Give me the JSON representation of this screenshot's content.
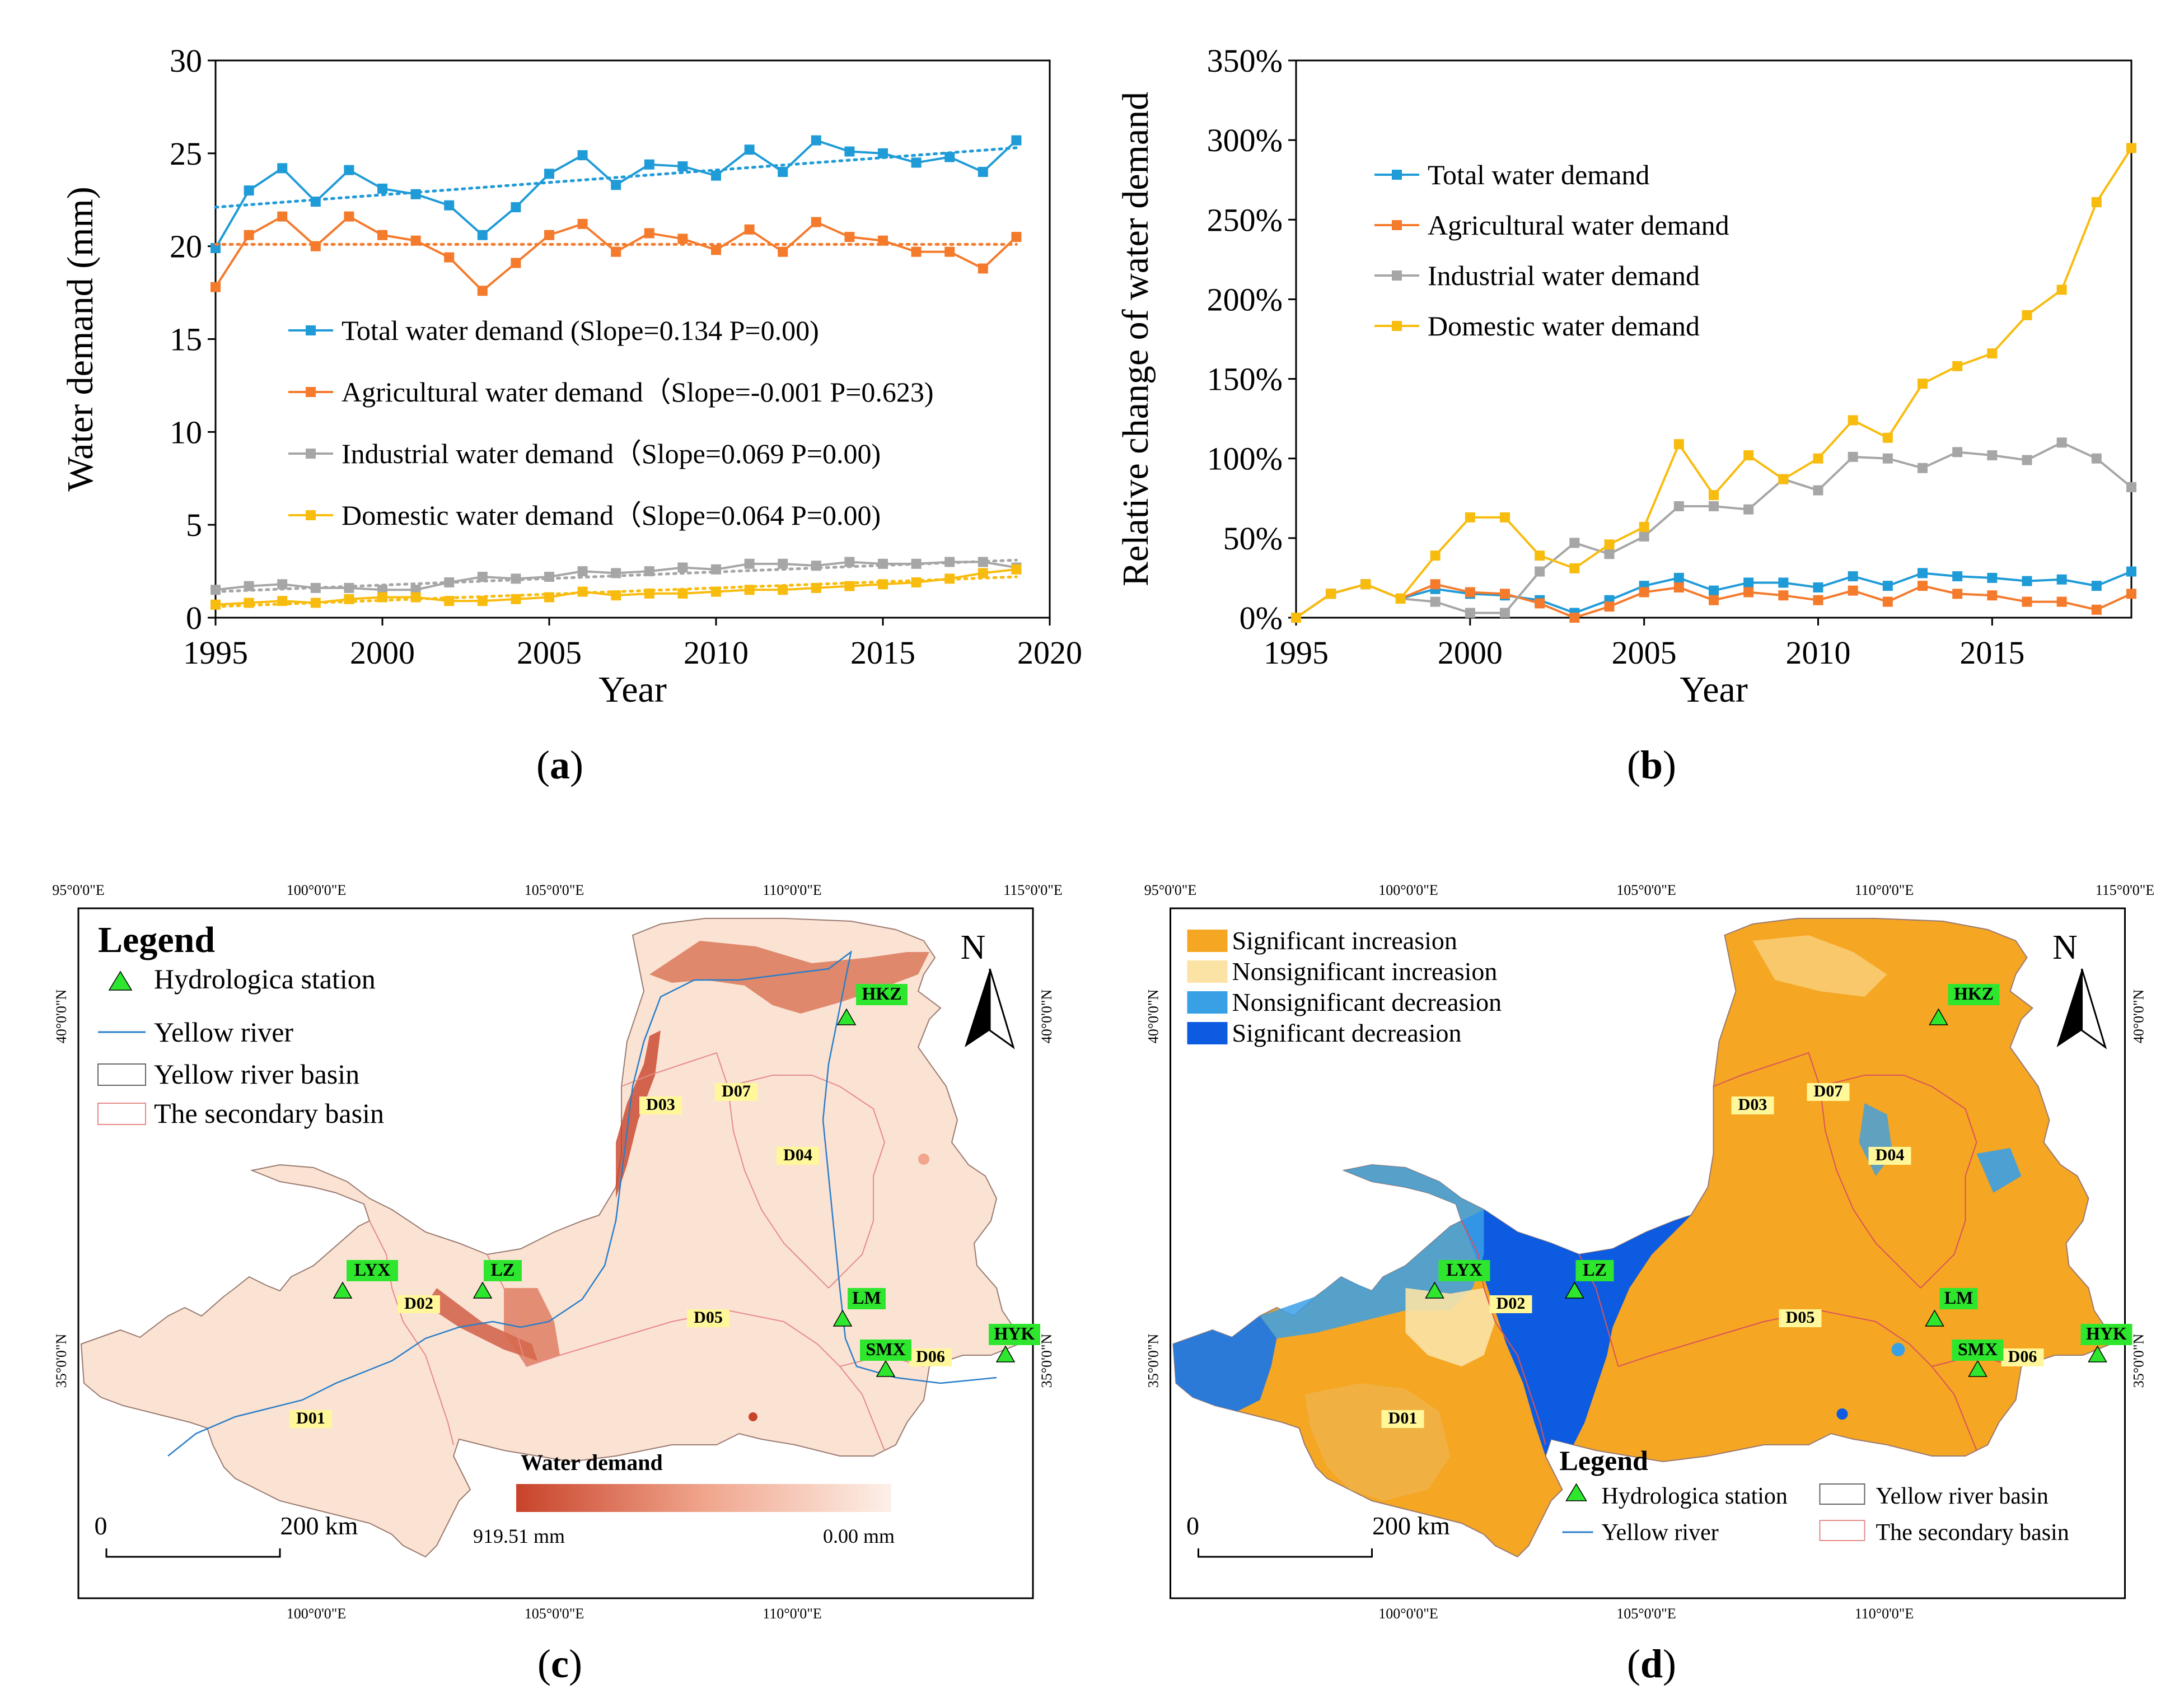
{
  "panels": {
    "a": "a",
    "b": "b",
    "c": "c",
    "d": "d"
  },
  "colors": {
    "total": "#1f9bd7",
    "agricultural": "#f47a2c",
    "industrial": "#a6a6a6",
    "domestic": "#f8bc0e"
  },
  "chart_data": [
    {
      "id": "a",
      "type": "line",
      "xlabel": "Year",
      "ylabel": "Water demand (mm)",
      "xlim": [
        1995,
        2020
      ],
      "ylim": [
        0,
        30
      ],
      "xticks": [
        1995,
        2000,
        2005,
        2010,
        2015,
        2020
      ],
      "yticks": [
        0,
        5,
        10,
        15,
        20,
        25,
        30
      ],
      "x": [
        1995,
        1996,
        1997,
        1998,
        1999,
        2000,
        2001,
        2002,
        2003,
        2004,
        2005,
        2006,
        2007,
        2008,
        2009,
        2010,
        2011,
        2012,
        2013,
        2014,
        2015,
        2016,
        2017,
        2018,
        2019
      ],
      "series": [
        {
          "key": "total",
          "name": "Total water demand (Slope=0.134 P=0.00)",
          "values": [
            19.9,
            23.0,
            24.2,
            22.4,
            24.1,
            23.1,
            22.8,
            22.2,
            20.6,
            22.1,
            23.9,
            24.9,
            23.3,
            24.4,
            24.3,
            23.8,
            25.2,
            24.0,
            25.7,
            25.1,
            25.0,
            24.5,
            24.8,
            24.0,
            25.7
          ],
          "trend": [
            22.1,
            25.3
          ]
        },
        {
          "key": "agricultural",
          "name": "Agricultural water demand（Slope=-0.001 P=0.623)",
          "values": [
            17.8,
            20.6,
            21.6,
            20.0,
            21.6,
            20.6,
            20.3,
            19.4,
            17.6,
            19.1,
            20.6,
            21.2,
            19.7,
            20.7,
            20.4,
            19.8,
            20.9,
            19.7,
            21.3,
            20.5,
            20.3,
            19.7,
            19.7,
            18.8,
            20.5
          ],
          "trend": [
            20.1,
            20.1
          ]
        },
        {
          "key": "industrial",
          "name": "Industrial  water demand（Slope=0.069 P=0.00)",
          "values": [
            1.5,
            1.7,
            1.8,
            1.6,
            1.6,
            1.5,
            1.5,
            1.9,
            2.2,
            2.1,
            2.2,
            2.5,
            2.4,
            2.5,
            2.7,
            2.6,
            2.9,
            2.9,
            2.8,
            3.0,
            2.9,
            2.9,
            3.0,
            3.0,
            2.7
          ],
          "trend": [
            1.4,
            3.1
          ]
        },
        {
          "key": "domestic",
          "name": "Domestic water demand（Slope=0.064 P=0.00)",
          "values": [
            0.7,
            0.8,
            0.9,
            0.8,
            1.0,
            1.1,
            1.1,
            0.9,
            0.9,
            1.0,
            1.1,
            1.4,
            1.2,
            1.3,
            1.3,
            1.4,
            1.5,
            1.5,
            1.6,
            1.7,
            1.8,
            1.9,
            2.1,
            2.4,
            2.6
          ],
          "trend": [
            0.6,
            2.2
          ]
        }
      ]
    },
    {
      "id": "b",
      "type": "line",
      "xlabel": "Year",
      "ylabel": "Relative change of water demand",
      "xlim": [
        1995,
        2019
      ],
      "ylim": [
        0,
        350
      ],
      "xticks": [
        1995,
        2000,
        2005,
        2010,
        2015
      ],
      "yticks": [
        0,
        50,
        100,
        150,
        200,
        250,
        300,
        350
      ],
      "yticklabels": [
        "0%",
        "50%",
        "100%",
        "150%",
        "200%",
        "250%",
        "300%",
        "350%"
      ],
      "x": [
        1995,
        1996,
        1997,
        1998,
        1999,
        2000,
        2001,
        2002,
        2003,
        2004,
        2005,
        2006,
        2007,
        2008,
        2009,
        2010,
        2011,
        2012,
        2013,
        2014,
        2015,
        2016,
        2017,
        2018,
        2019
      ],
      "series": [
        {
          "key": "total",
          "name": "Total water demand",
          "values": [
            0,
            15,
            21,
            12,
            18,
            15,
            14,
            11,
            3,
            11,
            20,
            25,
            17,
            22,
            22,
            19,
            26,
            20,
            28,
            26,
            25,
            23,
            24,
            20,
            29
          ]
        },
        {
          "key": "agricultural",
          "name": "Agricultural water demand",
          "values": [
            0,
            15,
            21,
            12,
            21,
            16,
            15,
            9,
            0,
            7,
            16,
            19,
            11,
            16,
            14,
            11,
            17,
            10,
            20,
            15,
            14,
            10,
            10,
            5,
            15
          ]
        },
        {
          "key": "industrial",
          "name": "Industrial  water demand",
          "values": [
            0,
            15,
            21,
            12,
            10,
            3,
            3,
            29,
            47,
            40,
            51,
            70,
            70,
            68,
            87,
            80,
            101,
            100,
            94,
            104,
            102,
            99,
            110,
            100,
            82
          ]
        },
        {
          "key": "domestic",
          "name": "Domestic water demand",
          "values": [
            0,
            15,
            21,
            12,
            39,
            63,
            63,
            39,
            31,
            46,
            57,
            109,
            77,
            102,
            87,
            100,
            124,
            113,
            147,
            158,
            166,
            190,
            206,
            261,
            295
          ]
        }
      ]
    }
  ],
  "maps": {
    "lon_labels": [
      "95°0'0\"E",
      "100°0'0\"E",
      "105°0'0\"E",
      "110°0'0\"E",
      "115°0'0\"E"
    ],
    "lat_labels": [
      "40°0'0\"N",
      "35°0'0\"N"
    ],
    "lon_labels_bottom": [
      "100°0'0\"E",
      "105°0'0\"E",
      "110°0'0\"E"
    ],
    "north": "N",
    "scale_zero": "0",
    "scale_value": "200",
    "scale_unit": "km",
    "stations": [
      "HKZ",
      "LYX",
      "LZ",
      "LM",
      "SMX",
      "HYK"
    ],
    "basins": [
      "D01",
      "D02",
      "D03",
      "D04",
      "D05",
      "D06",
      "D07"
    ],
    "c": {
      "legend_title": "Legend",
      "legend_items": [
        "Hydrologica station",
        "Yellow river",
        "Yellow river basin",
        "The secondary basin"
      ],
      "colorbar_title": "Water demand",
      "colorbar_max": "919.51 mm",
      "colorbar_min": "0.00 mm",
      "fill": "#fbe3d4",
      "hot": "#c8432a"
    },
    "d": {
      "trend_items": [
        "Significant increasion",
        "Nonsignificant increasion",
        "Nonsignificant decreasion",
        "Significant decreasion"
      ],
      "trend_colors": [
        "#f5a623",
        "#fbe3a6",
        "#3aa0e6",
        "#0d5be0"
      ],
      "legend_title": "Legend",
      "legend_items": [
        "Hydrologica station",
        "Yellow river basin",
        "Yellow river",
        "The secondary basin"
      ]
    }
  }
}
